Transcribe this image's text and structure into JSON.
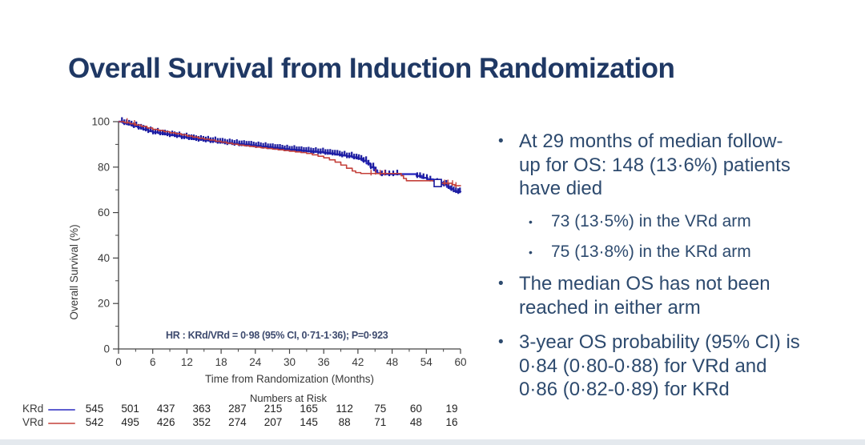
{
  "slide": {
    "title": "Overall Survival from Induction Randomization",
    "accent_color": "#1f3864",
    "text_color": "#2d4a6e"
  },
  "bullets": [
    {
      "text": "At 29 months of median follow-up for OS: 148 (13·6%) patients have died",
      "lines": [
        "At 29 months of median follow-",
        "up for OS: 148 (13·6%) patients",
        "have died"
      ],
      "children": [
        {
          "text": "73 (13·5%) in the VRd arm"
        },
        {
          "text": "75 (13·8%) in the KRd arm"
        }
      ]
    },
    {
      "text": "The median OS has not been reached in either arm",
      "lines": [
        "The median OS has not been",
        "reached in either arm"
      ]
    },
    {
      "text": "3-year OS probability (95% CI) is 0·84 (0·80-0·88) for VRd and 0·86 (0·82-0·89) for KRd",
      "lines": [
        "3-year OS probability (95% CI) is",
        "0·84 (0·80-0·88) for VRd and",
        "0·86 (0·82-0·89) for KRd"
      ]
    }
  ],
  "chart_data": {
    "type": "line",
    "subtype": "kaplan-meier-step",
    "xlabel": "Time from Randomization (Months)",
    "ylabel": "Overall Survival (%)",
    "xlim": [
      0,
      60
    ],
    "ylim": [
      0,
      100
    ],
    "xticks": [
      0,
      6,
      12,
      18,
      24,
      30,
      36,
      42,
      48,
      54,
      60
    ],
    "xminor_step": 3,
    "yticks": [
      0,
      20,
      40,
      60,
      80,
      100
    ],
    "yminor": [
      10,
      30,
      50,
      70,
      90
    ],
    "grid": false,
    "annotation": "HR : KRd/VRd = 0·98 (95% CI, 0·71-1·36); P=0·923",
    "axis_color": "#444444",
    "series": [
      {
        "name": "KRd",
        "color": "#2a2ac0",
        "censor_color": "#1b1b9e",
        "width": 2.4,
        "points": [
          [
            0,
            100
          ],
          [
            0.8,
            99.4
          ],
          [
            1.6,
            98.8
          ],
          [
            2.5,
            98.1
          ],
          [
            3.4,
            97.4
          ],
          [
            4.3,
            96.6
          ],
          [
            5.2,
            95.9
          ],
          [
            6,
            95.3
          ],
          [
            7,
            94.9
          ],
          [
            8,
            94.5
          ],
          [
            9,
            94.1
          ],
          [
            10,
            93.7
          ],
          [
            11,
            93.2
          ],
          [
            12,
            92.8
          ],
          [
            13,
            92.4
          ],
          [
            14,
            92.1
          ],
          [
            15,
            91.8
          ],
          [
            16,
            91.5
          ],
          [
            17,
            91.2
          ],
          [
            18,
            90.9
          ],
          [
            19,
            90.6
          ],
          [
            20,
            90.3
          ],
          [
            21,
            90.1
          ],
          [
            22,
            89.9
          ],
          [
            23,
            89.6
          ],
          [
            24,
            89.3
          ],
          [
            25,
            89.0
          ],
          [
            26,
            88.8
          ],
          [
            27,
            88.5
          ],
          [
            28,
            88.2
          ],
          [
            29,
            87.9
          ],
          [
            30,
            87.7
          ],
          [
            31,
            87.5
          ],
          [
            32,
            87.2
          ],
          [
            33,
            87.0
          ],
          [
            34,
            86.8
          ],
          [
            35,
            86.6
          ],
          [
            36,
            86.3
          ],
          [
            37,
            86.0
          ],
          [
            38,
            85.6
          ],
          [
            39,
            85.2
          ],
          [
            40,
            84.8
          ],
          [
            41,
            84.3
          ],
          [
            42,
            83.7
          ],
          [
            42.8,
            82.8
          ],
          [
            43.5,
            81.6
          ],
          [
            44.2,
            80.0
          ],
          [
            44.8,
            78.6
          ],
          [
            45.4,
            77.3
          ],
          [
            46,
            76.9
          ],
          [
            51.5,
            76.9
          ],
          [
            52.3,
            76.1
          ],
          [
            53.2,
            75.3
          ],
          [
            54.2,
            74.6
          ],
          [
            55.2,
            74.0
          ],
          [
            55.9,
            73.2
          ],
          [
            56.8,
            72.4
          ],
          [
            57.6,
            71.3
          ],
          [
            58.2,
            70.4
          ],
          [
            58.8,
            69.5
          ],
          [
            59.3,
            69.1
          ],
          [
            60,
            69.0
          ]
        ],
        "censor_ranges": [
          [
            0.6,
            45.5,
            0.42
          ]
        ],
        "censor_extra": [
          46.2,
          46.8,
          47.5,
          48.2,
          48.9,
          52.4,
          52.9,
          53.5,
          54.1,
          54.7,
          55.9,
          56.6,
          57.1,
          57.5,
          57.9,
          58.4,
          58.8,
          59.2,
          59.6,
          59.9
        ]
      },
      {
        "name": "VRd",
        "color": "#c4403a",
        "censor_color": "#c4403a",
        "width": 1.6,
        "points": [
          [
            0,
            100
          ],
          [
            1,
            99.6
          ],
          [
            2,
            99.1
          ],
          [
            3,
            98.5
          ],
          [
            4,
            97.9
          ],
          [
            5,
            97.2
          ],
          [
            6,
            96.6
          ],
          [
            7,
            96.1
          ],
          [
            8,
            95.6
          ],
          [
            9,
            95.1
          ],
          [
            10,
            94.7
          ],
          [
            11,
            94.2
          ],
          [
            12,
            93.7
          ],
          [
            13,
            93.2
          ],
          [
            14,
            92.7
          ],
          [
            15,
            92.3
          ],
          [
            16,
            91.9
          ],
          [
            17,
            91.4
          ],
          [
            18,
            91.0
          ],
          [
            19,
            90.5
          ],
          [
            20,
            90.1
          ],
          [
            21,
            89.7
          ],
          [
            22,
            89.4
          ],
          [
            23,
            89.1
          ],
          [
            24,
            88.8
          ],
          [
            25,
            88.5
          ],
          [
            26,
            88.2
          ],
          [
            27,
            87.9
          ],
          [
            28,
            87.6
          ],
          [
            29,
            87.3
          ],
          [
            30,
            87.0
          ],
          [
            31,
            86.7
          ],
          [
            32,
            86.4
          ],
          [
            33,
            86.0
          ],
          [
            34,
            85.4
          ],
          [
            35,
            84.8
          ],
          [
            36,
            84.1
          ],
          [
            37,
            83.2
          ],
          [
            38,
            82.2
          ],
          [
            39,
            80.9
          ],
          [
            40,
            79.5
          ],
          [
            41,
            78.3
          ],
          [
            41.6,
            77.6
          ],
          [
            42.5,
            77.2
          ],
          [
            49.6,
            76.2
          ],
          [
            50,
            75.0
          ],
          [
            50.5,
            74.0
          ],
          [
            55.5,
            74.0
          ],
          [
            56.2,
            72.9
          ],
          [
            58.5,
            72.3
          ],
          [
            59,
            71.8
          ],
          [
            60,
            71.6
          ]
        ],
        "censor_ranges": [],
        "censor_extra": [
          1.5,
          2.8,
          44.3,
          45.1,
          45.9,
          46.7,
          56.3,
          57.2,
          57.8,
          58.6,
          59.2
        ]
      }
    ],
    "square_marker": {
      "series": "KRd",
      "month": 56,
      "pct": 73,
      "fill": "#ffffff",
      "stroke": "#1b1b9e"
    },
    "numbers_at_risk": {
      "title": "Numbers at Risk",
      "rows": [
        {
          "label": "KRd",
          "values": [
            545,
            501,
            437,
            363,
            287,
            215,
            165,
            112,
            75,
            60,
            19
          ]
        },
        {
          "label": "VRd",
          "values": [
            542,
            495,
            426,
            352,
            274,
            207,
            145,
            88,
            71,
            48,
            16
          ]
        }
      ]
    }
  }
}
